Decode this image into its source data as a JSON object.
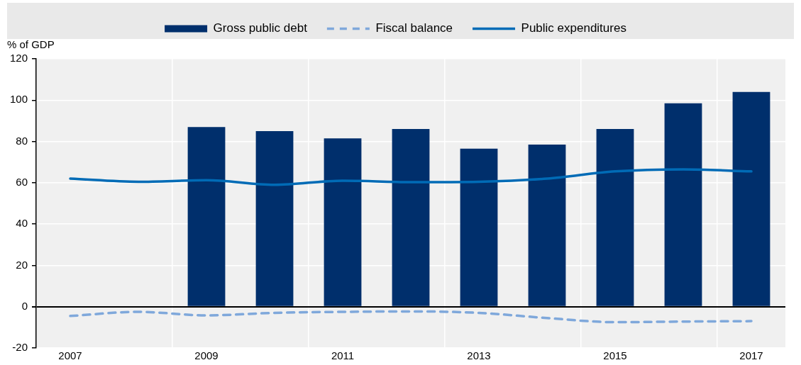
{
  "chart_data": {
    "type": "bar",
    "ylabel": "% of GDP",
    "categories": [
      "2007",
      null,
      "2009",
      null,
      "2011",
      null,
      "2013",
      null,
      "2015",
      null,
      "2017"
    ],
    "series": [
      {
        "name": "Gross public debt",
        "color": "#002f6c",
        "values": [
          null,
          null,
          87,
          85,
          81.5,
          86,
          76.5,
          78.5,
          86,
          98.5,
          104
        ]
      },
      {
        "name": "Fiscal balance",
        "type": "line",
        "line_style": "dashed",
        "color": "#7fa8db",
        "values": [
          -4.5,
          -2.5,
          -4.2,
          -3,
          -2.5,
          -2.3,
          -3,
          -5.5,
          -7.5,
          -7.2,
          -7
        ]
      },
      {
        "name": "Public expenditures",
        "type": "line",
        "line_style": "solid",
        "color": "#006bb6",
        "values": [
          62,
          60.5,
          61.2,
          59,
          61,
          60.3,
          60.5,
          62,
          65.5,
          66.5,
          65.5
        ]
      }
    ],
    "ylim": [
      -20,
      120
    ],
    "yticks": [
      -20,
      0,
      20,
      40,
      60,
      80,
      100,
      120
    ],
    "grid": true,
    "legend": "top",
    "marker": "none"
  }
}
